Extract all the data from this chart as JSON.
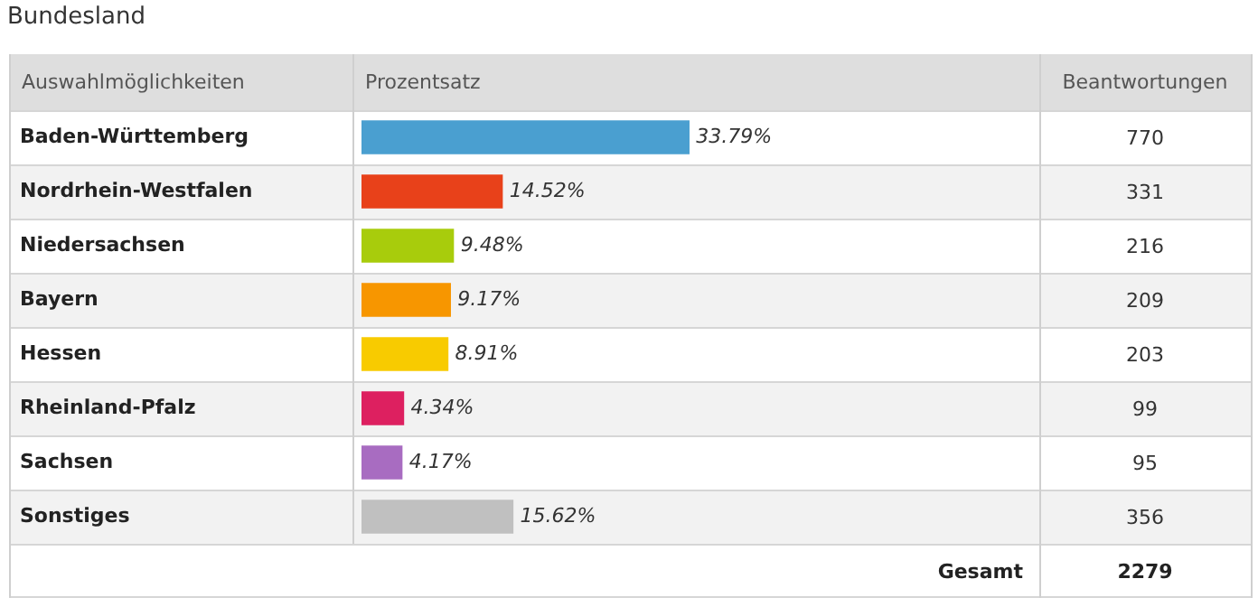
{
  "chart_data": {
    "type": "bar",
    "orientation": "horizontal",
    "title": "Bundesland",
    "ylabel": "Auswahlmöglichkeiten",
    "xlabel": "Prozentsatz",
    "categories": [
      "Baden-Württemberg",
      "Nordrhein-Westfalen",
      "Niedersachsen",
      "Bayern",
      "Hessen",
      "Rheinland-Pfalz",
      "Sachsen",
      "Sonstiges"
    ],
    "values": [
      33.79,
      14.52,
      9.48,
      9.17,
      8.91,
      4.34,
      4.17,
      15.62
    ],
    "colors": [
      "#4a9fd0",
      "#e8411a",
      "#a8cc0c",
      "#f79600",
      "#f8cb00",
      "#dd2060",
      "#a86cc1",
      "#c0c0c0"
    ],
    "value_labels": [
      "33.79%",
      "14.52%",
      "9.48%",
      "9.17%",
      "8.91%",
      "4.34%",
      "4.17%",
      "15.62%"
    ],
    "annotations": [
      "Beantwortungen",
      "770",
      "331",
      "216",
      "209",
      "203",
      "99",
      "95",
      "356",
      "Gesamt",
      "2279"
    ],
    "legend": false
  }
}
